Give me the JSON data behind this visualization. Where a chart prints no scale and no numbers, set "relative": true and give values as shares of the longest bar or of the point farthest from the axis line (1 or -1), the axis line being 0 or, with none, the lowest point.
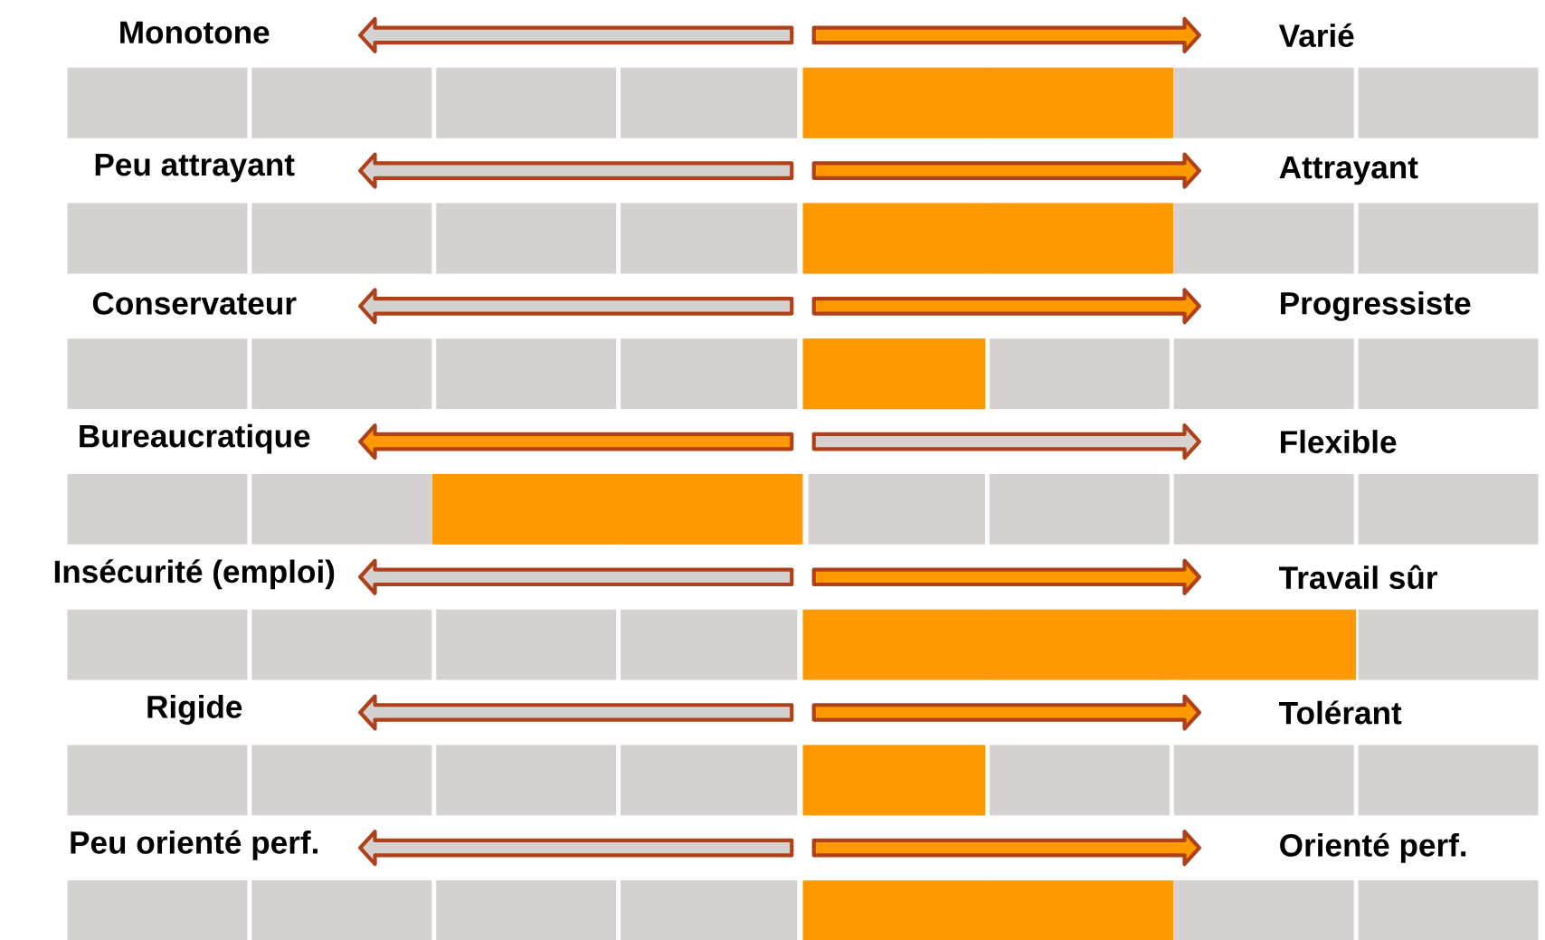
{
  "chart_data": {
    "type": "bar",
    "orientation": "horizontal",
    "relative": true,
    "categories": [
      "Monotone",
      "Peu attrayant",
      "Conservateur",
      "Bureaucratique",
      "Insécurité (emploi)",
      "Rigide",
      "Peu orienté perf."
    ],
    "values": [
      0.67,
      0.67,
      0.33,
      -0.67,
      1,
      0.33,
      0.67
    ],
    "color": "#ff9900",
    "annotations": [
      "Varié",
      "Attrayant",
      "Progressiste",
      "Flexible",
      "Travail sûr",
      "Tolérant",
      "Orienté perf."
    ]
  }
}
